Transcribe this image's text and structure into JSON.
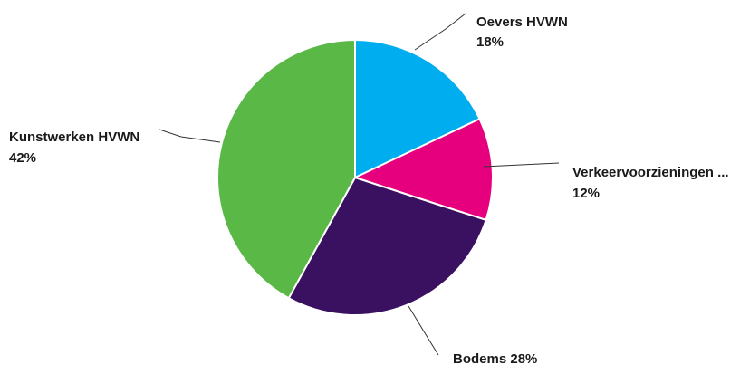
{
  "chart_data": {
    "type": "pie",
    "start_angle_deg": 0,
    "direction": "clockwise",
    "slices": [
      {
        "label": "Oevers HVWN",
        "value": 18,
        "value_label": "18%",
        "color": "#00aeef"
      },
      {
        "label": "Verkeervoorzieningen ...",
        "value": 12,
        "value_label": "12%",
        "color": "#e6007e"
      },
      {
        "label": "Bodems",
        "value": 28,
        "value_label": "28%",
        "color": "#3a1060"
      },
      {
        "label": "Kunstwerken HVWN",
        "value": 42,
        "value_label": "42%",
        "color": "#5ab847"
      }
    ],
    "legend": "none",
    "data_labels": "outside"
  }
}
